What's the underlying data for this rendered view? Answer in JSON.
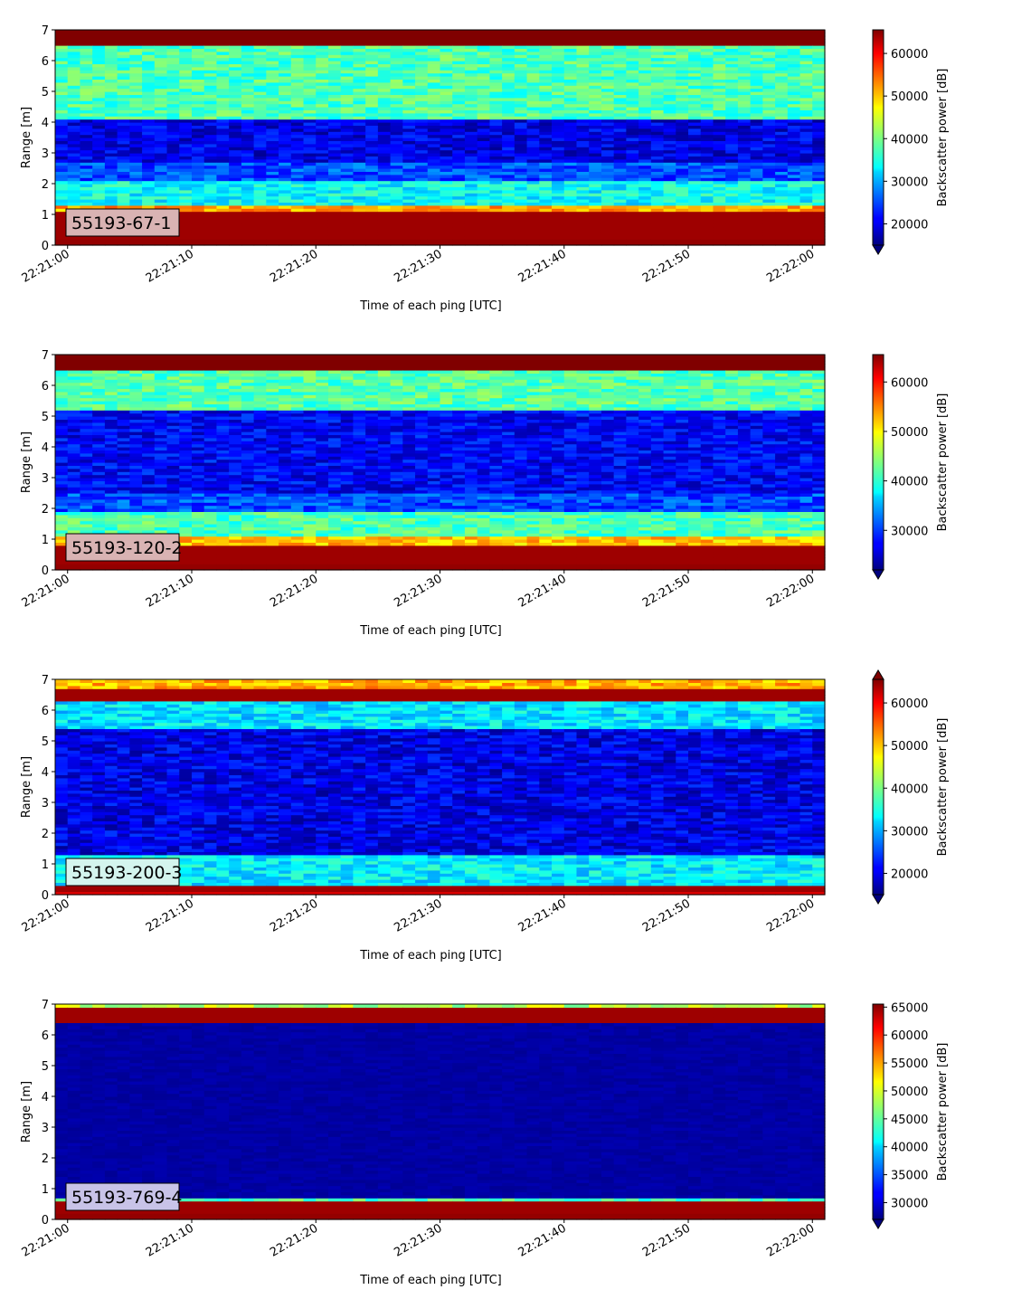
{
  "figure": {
    "x_tick_labels": [
      "22:21:00",
      "22:21:10",
      "22:21:20",
      "22:21:30",
      "22:21:40",
      "22:21:50",
      "22:22:00"
    ],
    "xlabel": "Time of each ping [UTC]",
    "ylabel": "Range [m]",
    "colorbar_label": "Backscatter power [dB]"
  },
  "chart_data": [
    {
      "type": "heatmap",
      "label": "55193-67-1",
      "label_box_color": "#d9b3b3",
      "x_range_seconds": [
        -1,
        61
      ],
      "ylim": [
        0,
        7
      ],
      "y_ticks": [
        0,
        1,
        2,
        3,
        4,
        5,
        6,
        7
      ],
      "colorbar_ticks": [
        20000,
        30000,
        40000,
        50000,
        60000
      ],
      "clim": [
        15000,
        65535
      ],
      "colorbar_extend": "min",
      "bands": [
        {
          "from": 0,
          "to": 0.25,
          "level": 0.98
        },
        {
          "from": 0.25,
          "to": 1.05,
          "level": 0.97
        },
        {
          "from": 1.05,
          "to": 1.3,
          "level": 0.72
        },
        {
          "from": 1.3,
          "to": 2.1,
          "level": 0.38
        },
        {
          "from": 2.1,
          "to": 2.7,
          "level": 0.2
        },
        {
          "from": 2.7,
          "to": 4.1,
          "level": 0.1
        },
        {
          "from": 4.1,
          "to": 6.45,
          "level": 0.45
        },
        {
          "from": 6.45,
          "to": 7,
          "level": 1.0
        }
      ]
    },
    {
      "type": "heatmap",
      "label": "55193-120-2",
      "label_box_color": "#d9b3b3",
      "x_range_seconds": [
        -1,
        61
      ],
      "ylim": [
        0,
        7
      ],
      "y_ticks": [
        0,
        1,
        2,
        3,
        4,
        5,
        6,
        7
      ],
      "colorbar_ticks": [
        30000,
        40000,
        50000,
        60000
      ],
      "clim": [
        22000,
        65535
      ],
      "colorbar_extend": "min",
      "bands": [
        {
          "from": 0,
          "to": 0.2,
          "level": 0.98
        },
        {
          "from": 0.2,
          "to": 0.85,
          "level": 0.97
        },
        {
          "from": 0.85,
          "to": 1.1,
          "level": 0.68
        },
        {
          "from": 1.1,
          "to": 1.9,
          "level": 0.45
        },
        {
          "from": 1.9,
          "to": 2.5,
          "level": 0.2
        },
        {
          "from": 2.5,
          "to": 5.2,
          "level": 0.12
        },
        {
          "from": 5.2,
          "to": 6.45,
          "level": 0.46
        },
        {
          "from": 6.45,
          "to": 7,
          "level": 1.0
        }
      ]
    },
    {
      "type": "heatmap",
      "label": "55193-200-3",
      "label_box_color": "#d4f5ee",
      "x_range_seconds": [
        -1,
        61
      ],
      "ylim": [
        0,
        7
      ],
      "y_ticks": [
        0,
        1,
        2,
        3,
        4,
        5,
        6,
        7
      ],
      "colorbar_ticks": [
        20000,
        30000,
        40000,
        50000,
        60000
      ],
      "clim": [
        15000,
        65535
      ],
      "colorbar_extend": "both",
      "bands": [
        {
          "from": 0,
          "to": 0.1,
          "level": 0.9
        },
        {
          "from": 0.1,
          "to": 0.35,
          "level": 0.97
        },
        {
          "from": 0.35,
          "to": 1.3,
          "level": 0.36
        },
        {
          "from": 1.3,
          "to": 5.4,
          "level": 0.1
        },
        {
          "from": 5.4,
          "to": 6.3,
          "level": 0.35
        },
        {
          "from": 6.3,
          "to": 6.65,
          "level": 0.97
        },
        {
          "from": 6.65,
          "to": 7,
          "level": 0.7
        }
      ]
    },
    {
      "type": "heatmap",
      "label": "55193-769-4",
      "label_box_color": "#c8c3e8",
      "x_range_seconds": [
        -1,
        61
      ],
      "ylim": [
        0,
        7
      ],
      "y_ticks": [
        0,
        1,
        2,
        3,
        4,
        5,
        6,
        7
      ],
      "colorbar_ticks": [
        30000,
        35000,
        40000,
        45000,
        50000,
        55000,
        60000,
        65000
      ],
      "clim": [
        27000,
        65535
      ],
      "colorbar_extend": "min",
      "bands": [
        {
          "from": 0,
          "to": 0.2,
          "level": 0.98
        },
        {
          "from": 0.2,
          "to": 0.65,
          "level": 0.97
        },
        {
          "from": 0.65,
          "to": 0.72,
          "level": 0.45
        },
        {
          "from": 0.72,
          "to": 6.42,
          "level": 0.02
        },
        {
          "from": 6.42,
          "to": 6.88,
          "level": 0.97
        },
        {
          "from": 6.88,
          "to": 7,
          "level": 0.55
        }
      ]
    }
  ]
}
